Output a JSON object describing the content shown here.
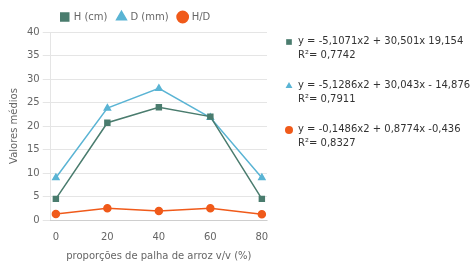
{
  "chart_data": {
    "type": "line",
    "x": [
      0,
      20,
      40,
      60,
      80
    ],
    "series": [
      {
        "name": "H (cm)",
        "color": "#4a7c6e",
        "marker": "square",
        "values": [
          4.5,
          20.7,
          24.0,
          22.0,
          4.5
        ]
      },
      {
        "name": "D (mm)",
        "color": "#5ab4d4",
        "marker": "triangle",
        "values": [
          9.0,
          23.8,
          28.0,
          21.8,
          9.0
        ]
      },
      {
        "name": "H/D",
        "color": "#f05a1a",
        "marker": "circle",
        "values": [
          1.3,
          2.5,
          1.9,
          2.5,
          1.2
        ]
      }
    ],
    "xlabel": "proporções de palha de arroz v/v (%)",
    "ylabel": "Valores médios",
    "xlim": [
      -2,
      82
    ],
    "xticks": [
      0,
      20,
      40,
      60,
      80
    ],
    "ylim": [
      0,
      40
    ],
    "yticks": [
      0,
      5,
      10,
      15,
      20,
      25,
      30,
      35,
      40
    ],
    "grid": true,
    "legend": "top",
    "annotations": [
      {
        "text": [
          "y = -5,1071x2 + 30,501x 19,154",
          "R²= 0,7742"
        ],
        "color": "#4a7c6e",
        "marker": "square"
      },
      {
        "text": [
          "y = -5,1286x2 + 30,043x - 14,876",
          "R²= 0,7911"
        ],
        "color": "#5ab4d4",
        "marker": "triangle"
      },
      {
        "text": [
          "y = -0,1486x2 + 0,8774x -0,436",
          "R²= 0,8327"
        ],
        "color": "#f05a1a",
        "marker": "circle"
      }
    ]
  }
}
